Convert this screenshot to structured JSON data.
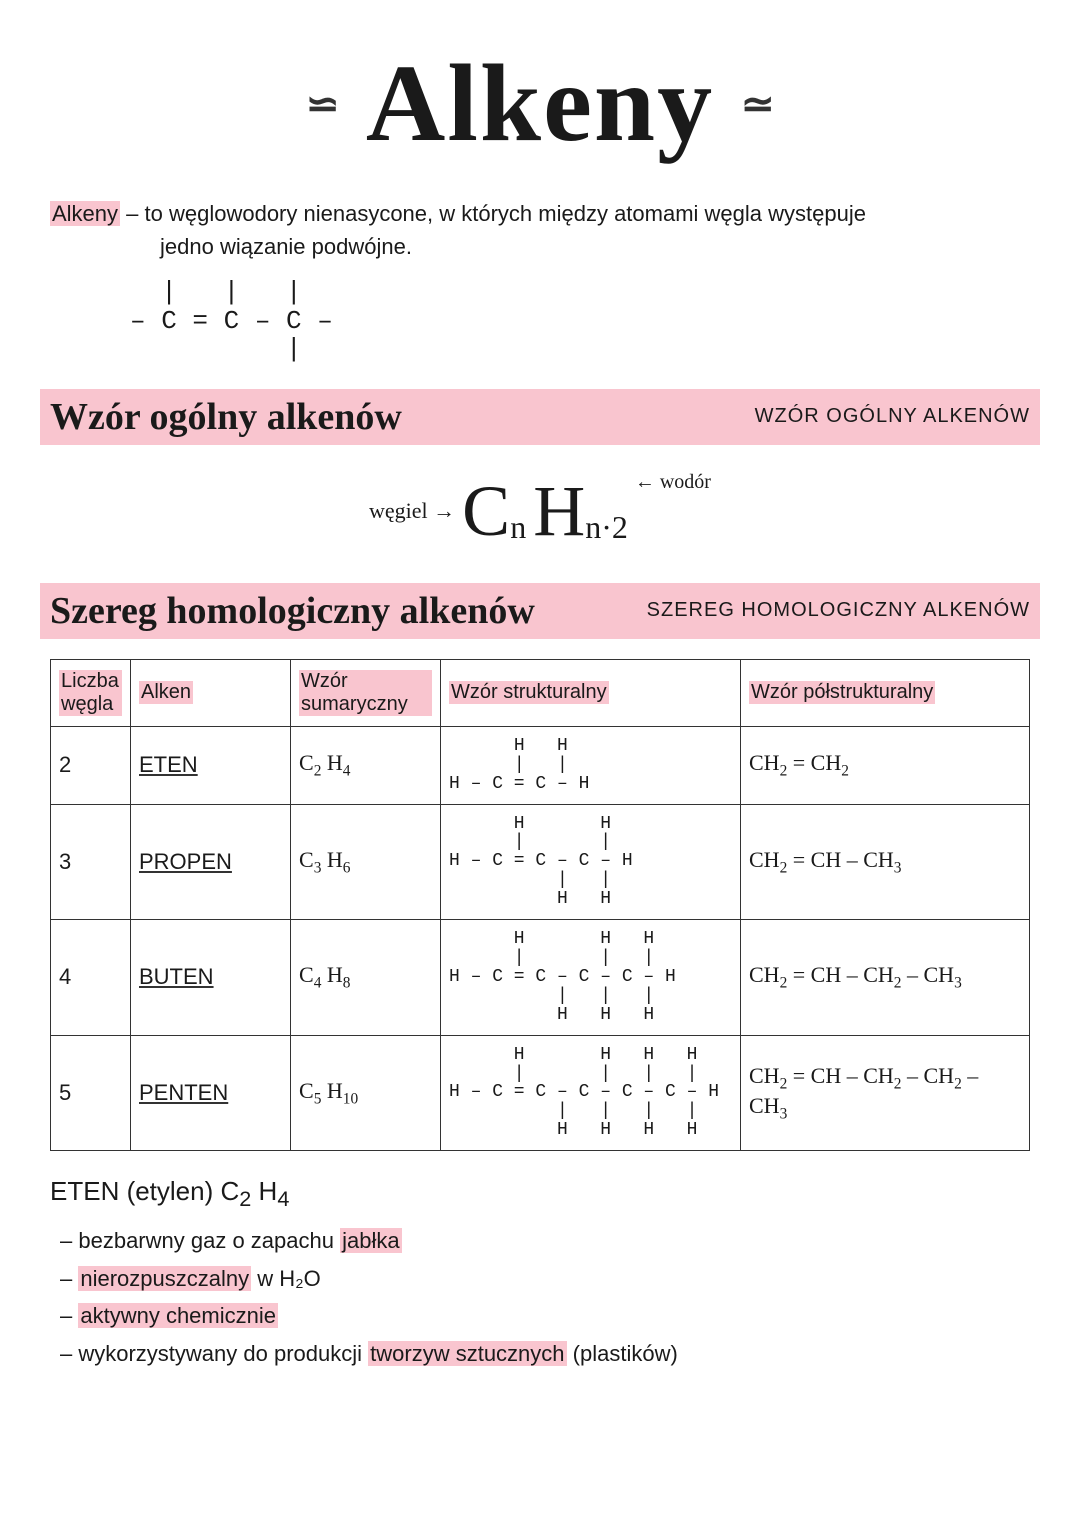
{
  "title": "Alkeny",
  "definition": {
    "term": "Alkeny",
    "rest1": "– to węglowodory nienasycone, w których między atomami węgla występuje",
    "rest2": "jedno wiązanie podwójne."
  },
  "bond_diagram": "  |   |   |\n– C = C – C –\n          |",
  "section1": {
    "cursive": "Wzór ogólny alkenów",
    "caps": "WZÓR OGÓLNY ALKENÓW"
  },
  "general_formula": {
    "left_label": "węgiel →",
    "c": "C",
    "n1": "n",
    "h": "H",
    "n2": "n·2",
    "right_label": "← wodór"
  },
  "section2": {
    "cursive": "Szereg homologiczny alkenów",
    "caps": "SZEREG HOMOLOGICZNY ALKENÓW"
  },
  "table": {
    "headers": {
      "n": "Liczba węgla",
      "name": "Alken",
      "sum": "Wzór sumaryczny",
      "struct": "Wzór strukturalny",
      "semi": "Wzór półstrukturalny"
    },
    "rows": [
      {
        "n": "2",
        "name": "ETEN",
        "sum_html": "C<sub>2</sub> H<sub>4</sub>",
        "struct": "    H   H\n    |   |\nH – C = C – H",
        "semi_html": "CH<sub>2</sub> = CH<sub>2</sub>"
      },
      {
        "n": "3",
        "name": "PROPEN",
        "sum_html": "C<sub>3</sub> H<sub>6</sub>",
        "struct": "    H       H\n    |       |\nH – C = C – C – H\n        |   |\n        H   H",
        "semi_html": "CH<sub>2</sub> = CH – CH<sub>3</sub>"
      },
      {
        "n": "4",
        "name": "BUTEN",
        "sum_html": "C<sub>4</sub> H<sub>8</sub>",
        "struct": "    H       H   H\n    |       |   |\nH – C = C – C – C – H\n        |   |   |\n        H   H   H",
        "semi_html": "CH<sub>2</sub> = CH – CH<sub>2</sub> – CH<sub>3</sub>"
      },
      {
        "n": "5",
        "name": "PENTEN",
        "sum_html": "C<sub>5</sub> H<sub>10</sub>",
        "struct": "    H       H   H   H\n    |       |   |   |\nH – C = C – C – C – C – H\n        |   |   |   |\n        H   H   H   H",
        "semi_html": "CH<sub>2</sub> = CH – CH<sub>2</sub> – CH<sub>2</sub> – CH<sub>3</sub>"
      }
    ]
  },
  "eten": {
    "title_html": "ETEN (etylen) C<sub>2</sub> H<sub>4</sub>",
    "bullets": [
      {
        "pre": "bezbarwny gaz o zapachu ",
        "hl": "jabłka",
        "post": ""
      },
      {
        "pre": "",
        "hl": "nierozpuszczalny",
        "post": " w H₂O"
      },
      {
        "pre": "",
        "hl": "aktywny chemicznie",
        "post": ""
      },
      {
        "pre": "wykorzystywany do produkcji ",
        "hl": "tworzyw sztucznych",
        "post": " (plastików)"
      }
    ]
  },
  "colors": {
    "highlight": "#f9c5cf",
    "ink": "#1a1a1a",
    "bg": "#ffffff"
  }
}
